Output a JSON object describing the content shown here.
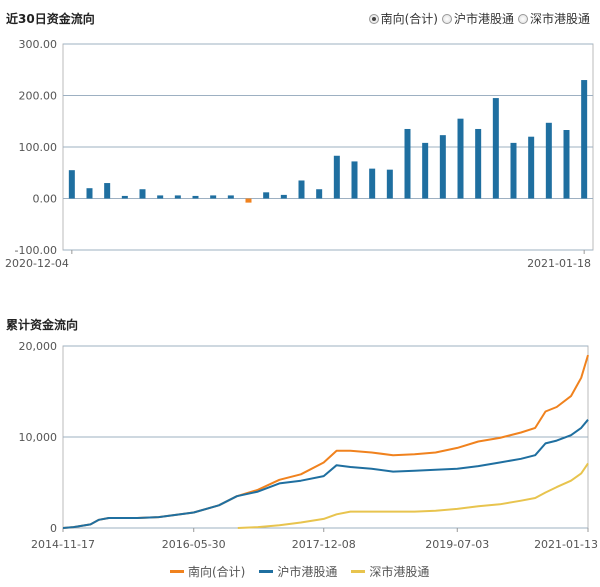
{
  "top": {
    "title": "近30日资金流向",
    "radio_options": [
      {
        "label": "南向(合计)",
        "checked": true
      },
      {
        "label": "沪市港股通",
        "checked": false
      },
      {
        "label": "深市港股通",
        "checked": false
      }
    ]
  },
  "bottom": {
    "title": "累计资金流向"
  },
  "legend": [
    {
      "label": "南向(合计)",
      "color": "#f0821e"
    },
    {
      "label": "沪市港股通",
      "color": "#1f6fa0"
    },
    {
      "label": "深市港股通",
      "color": "#e8c44e"
    }
  ],
  "chart_data": [
    {
      "type": "bar",
      "title": "近30日资金流向",
      "x_start_label": "2020-12-04",
      "x_end_label": "2021-01-18",
      "yticks": [
        "300.00",
        "200.00",
        "100.00",
        "0.00",
        "-100.00"
      ],
      "ylim": [
        -100,
        300
      ],
      "positive_color": "#1f6fa0",
      "negative_color": "#f0821e",
      "values": [
        55,
        20,
        30,
        5,
        18,
        6,
        6,
        5,
        6,
        6,
        -8,
        12,
        7,
        35,
        18,
        83,
        72,
        58,
        56,
        135,
        108,
        123,
        155,
        135,
        195,
        108,
        120,
        147,
        133,
        230
      ]
    },
    {
      "type": "line",
      "title": "累计资金流向",
      "xticks": [
        "2014-11-17",
        "2016-05-30",
        "2017-12-08",
        "2019-07-03",
        "2021-01-13"
      ],
      "yticks": [
        "20,000",
        "10,000",
        "0"
      ],
      "ylim": [
        0,
        20000
      ],
      "xlim": [
        "2014-11-17",
        "2021-01-13"
      ],
      "series": [
        {
          "name": "南向(合计)",
          "color": "#f0821e",
          "x": [
            "2014-11-17",
            "2015-01-01",
            "2015-03-15",
            "2015-04-20",
            "2015-06-01",
            "2015-10-01",
            "2016-01-01",
            "2016-05-30",
            "2016-09-15",
            "2016-12-01",
            "2017-03-01",
            "2017-06-01",
            "2017-09-01",
            "2017-12-08",
            "2018-02-01",
            "2018-04-01",
            "2018-07-01",
            "2018-10-01",
            "2019-01-01",
            "2019-04-01",
            "2019-07-03",
            "2019-10-01",
            "2020-01-01",
            "2020-04-01",
            "2020-06-01",
            "2020-07-15",
            "2020-09-01",
            "2020-11-01",
            "2020-12-15",
            "2021-01-13"
          ],
          "y": [
            0,
            100,
            400,
            900,
            1100,
            1100,
            1200,
            1700,
            2500,
            3500,
            4200,
            5300,
            5900,
            7200,
            8500,
            8500,
            8300,
            8000,
            8100,
            8300,
            8800,
            9500,
            9900,
            10500,
            11000,
            12800,
            13300,
            14500,
            16500,
            19000
          ]
        },
        {
          "name": "沪市港股通",
          "color": "#1f6fa0",
          "x": [
            "2014-11-17",
            "2015-01-01",
            "2015-03-15",
            "2015-04-20",
            "2015-06-01",
            "2015-10-01",
            "2016-01-01",
            "2016-05-30",
            "2016-09-15",
            "2016-12-01",
            "2017-03-01",
            "2017-06-01",
            "2017-09-01",
            "2017-12-08",
            "2018-02-01",
            "2018-04-01",
            "2018-07-01",
            "2018-10-01",
            "2019-01-01",
            "2019-04-01",
            "2019-07-03",
            "2019-10-01",
            "2020-01-01",
            "2020-04-01",
            "2020-06-01",
            "2020-07-15",
            "2020-09-01",
            "2020-11-01",
            "2020-12-15",
            "2021-01-13"
          ],
          "y": [
            0,
            100,
            400,
            900,
            1100,
            1100,
            1200,
            1700,
            2500,
            3500,
            4000,
            4900,
            5200,
            5700,
            6900,
            6700,
            6500,
            6200,
            6300,
            6400,
            6500,
            6800,
            7200,
            7600,
            8000,
            9300,
            9600,
            10200,
            11000,
            11900
          ]
        },
        {
          "name": "深市港股通",
          "color": "#e8c44e",
          "x": [
            "2016-12-05",
            "2017-03-01",
            "2017-06-01",
            "2017-09-01",
            "2017-12-08",
            "2018-02-01",
            "2018-04-01",
            "2018-07-01",
            "2018-10-01",
            "2019-01-01",
            "2019-04-01",
            "2019-07-03",
            "2019-10-01",
            "2020-01-01",
            "2020-04-01",
            "2020-06-01",
            "2020-07-15",
            "2020-09-01",
            "2020-11-01",
            "2020-12-15",
            "2021-01-13"
          ],
          "y": [
            0,
            100,
            300,
            600,
            1000,
            1500,
            1800,
            1800,
            1800,
            1800,
            1900,
            2100,
            2400,
            2600,
            3000,
            3300,
            3900,
            4500,
            5200,
            6000,
            7100
          ]
        }
      ]
    }
  ]
}
